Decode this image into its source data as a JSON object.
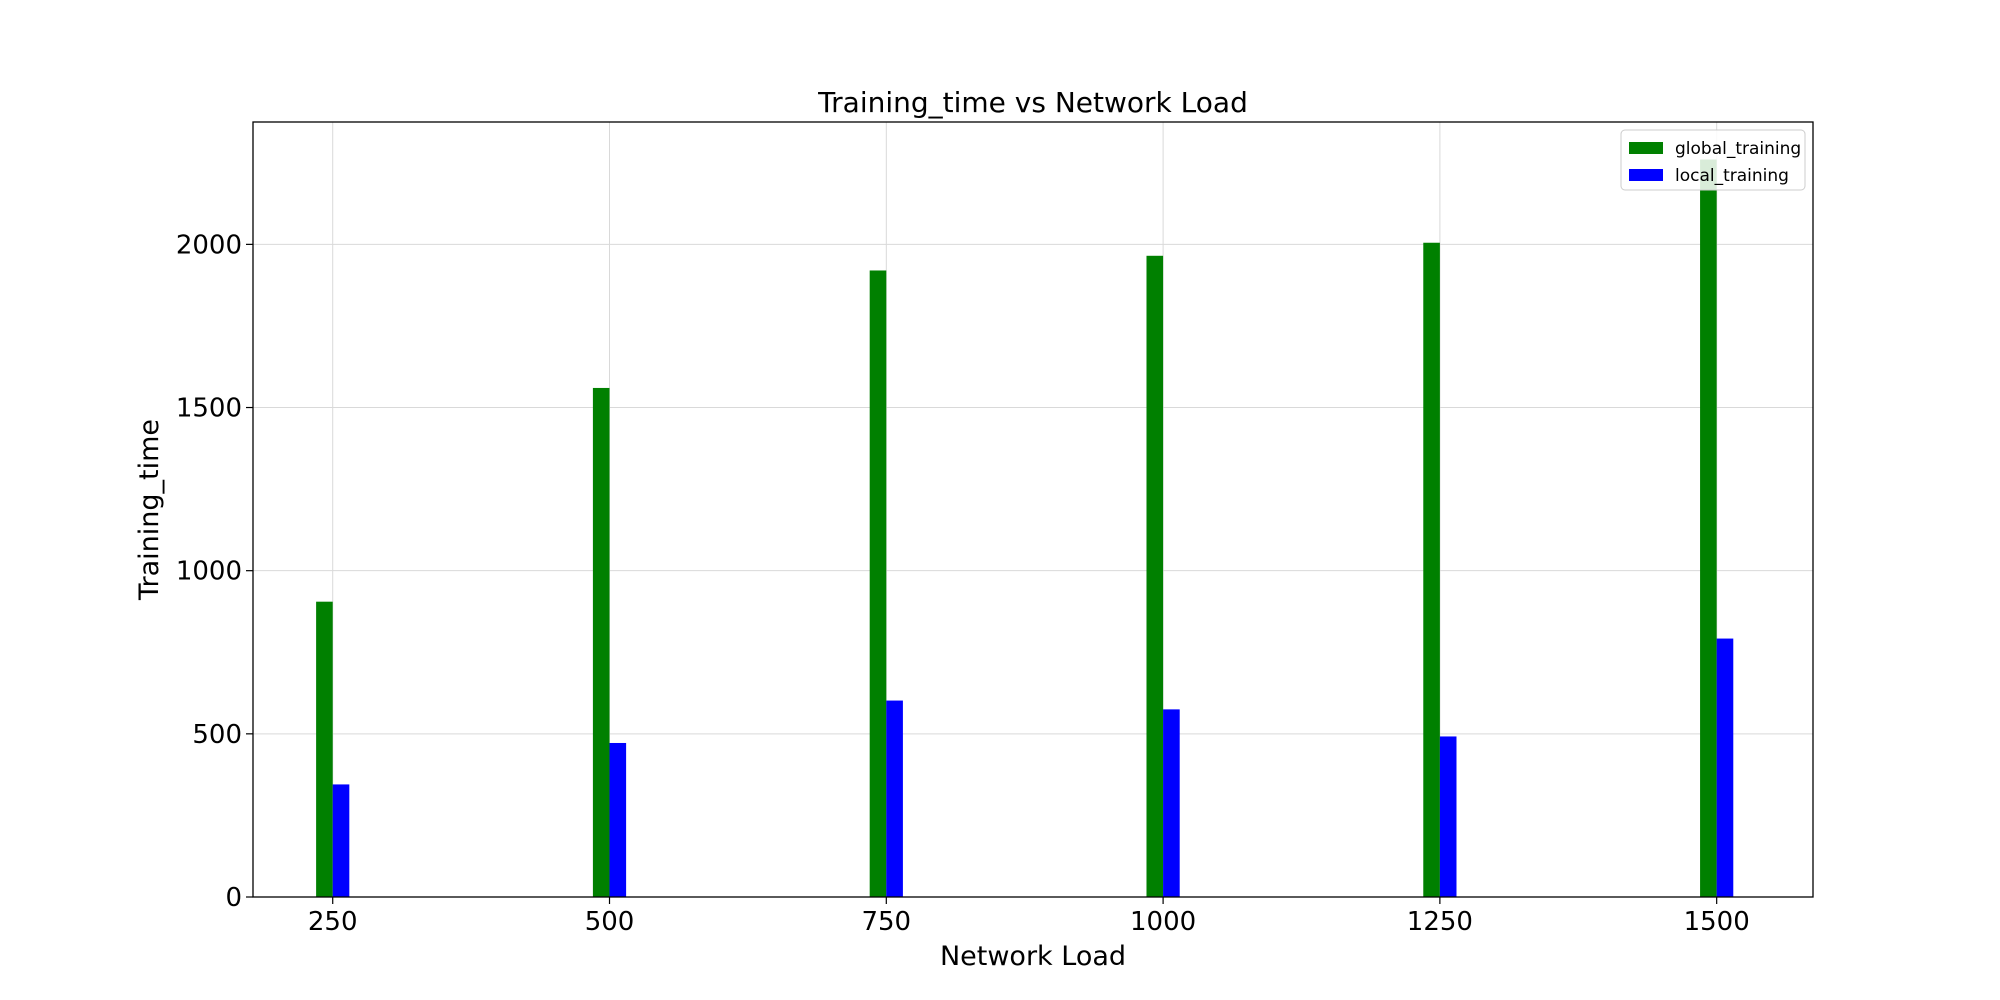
{
  "chart_data": {
    "type": "bar",
    "title": "Training_time vs Network Load",
    "xlabel": "Network Load",
    "ylabel": "Training_time",
    "x": [
      250,
      500,
      750,
      1000,
      1250,
      1500
    ],
    "xlim": [
      178,
      1587
    ],
    "ylim": [
      0,
      2375
    ],
    "xticks": [
      250,
      500,
      750,
      1000,
      1250,
      1500
    ],
    "yticks": [
      0,
      500,
      1000,
      1500,
      2000
    ],
    "bar_width": 15,
    "grid": true,
    "legend_position": "top-right",
    "series": [
      {
        "name": "global_training",
        "color": "#008000",
        "values": [
          905,
          1560,
          1920,
          1965,
          2005,
          2260
        ]
      },
      {
        "name": "local_training",
        "color": "#0000ff",
        "values": [
          345,
          472,
          602,
          575,
          492,
          792
        ]
      }
    ]
  }
}
